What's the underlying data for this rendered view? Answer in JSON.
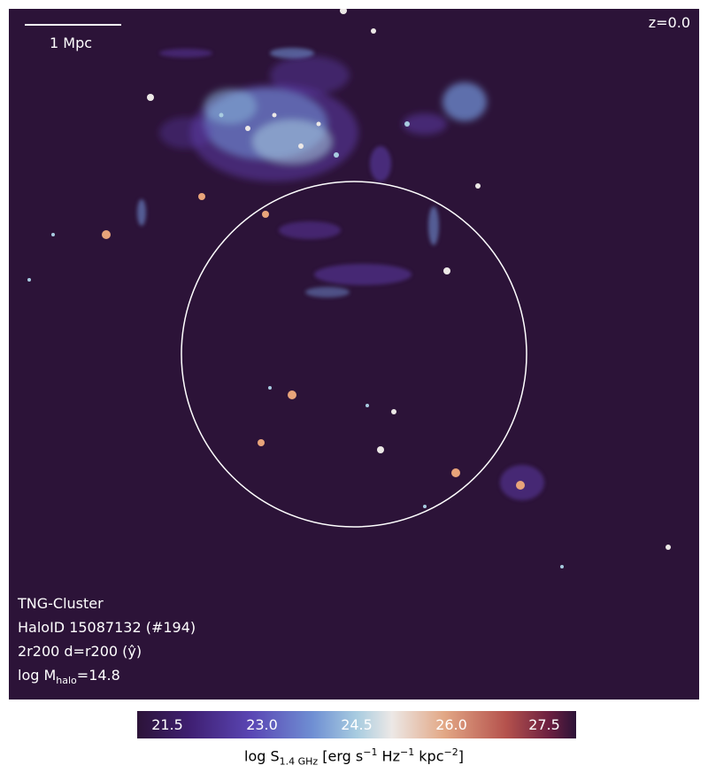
{
  "overlay": {
    "scale_label": "1 Mpc",
    "redshift": "z=0.0"
  },
  "info": {
    "line1": "TNG-Cluster",
    "line2": "HaloID 15087132 (#194)",
    "line3": "2r200 d=r200 (ŷ)",
    "line4_prefix": "log M",
    "line4_sub": "halo",
    "line4_suffix": "=14.8"
  },
  "colorbar": {
    "ticks": [
      "21.5",
      "23.0",
      "24.5",
      "26.0",
      "27.5"
    ],
    "label_prefix": "log S",
    "label_sub": "1.4 GHz",
    "label_units": " [erg s",
    "exp1": "−1",
    "label_hz": " Hz",
    "exp2": "−1",
    "label_kpc": " kpc",
    "exp3": "−2",
    "label_close": "]"
  },
  "colors": {
    "background": "#2c1338",
    "circle": "#ffffff",
    "emission_faint": "#5b3aa6",
    "emission_mid": "#8ab8dc",
    "emission_bright": "#e8a47a"
  }
}
